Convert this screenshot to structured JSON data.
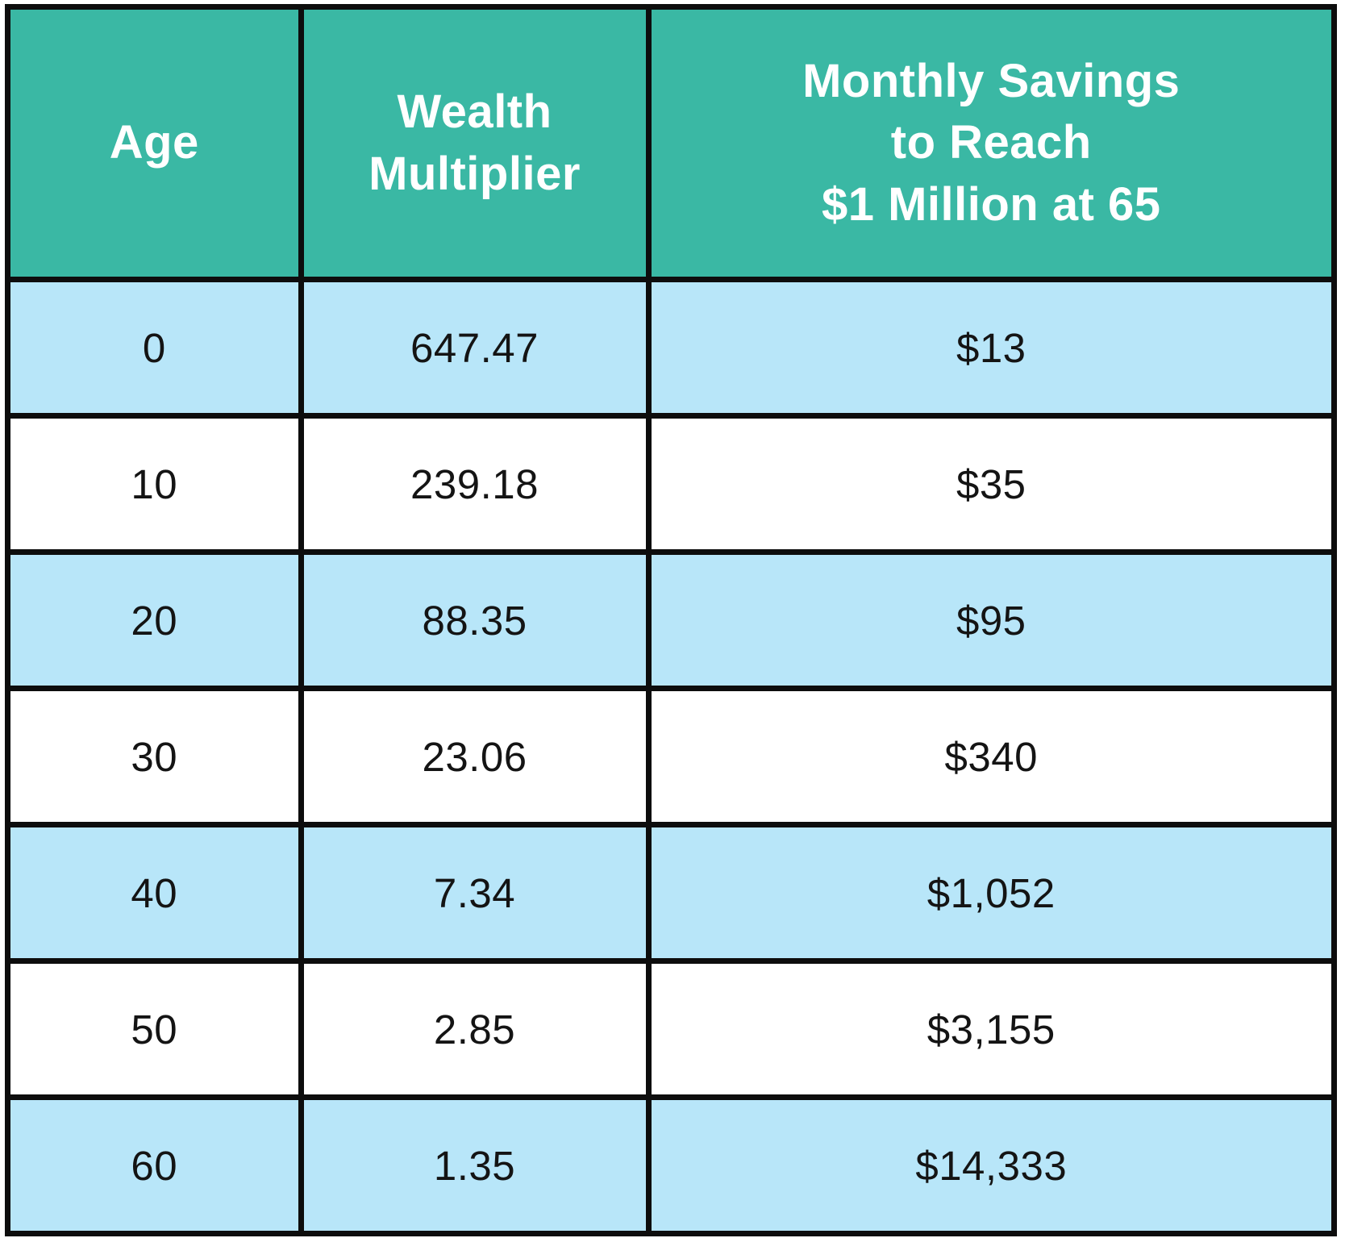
{
  "table": {
    "columns": [
      {
        "label": "Age"
      },
      {
        "label": "Wealth\nMultiplier"
      },
      {
        "label": "Monthly Savings\nto Reach\n$1 Million at 65"
      }
    ],
    "rows": [
      {
        "age": "0",
        "multiplier": "647.47",
        "savings": "$13"
      },
      {
        "age": "10",
        "multiplier": "239.18",
        "savings": "$35"
      },
      {
        "age": "20",
        "multiplier": "88.35",
        "savings": "$95"
      },
      {
        "age": "30",
        "multiplier": "23.06",
        "savings": "$340"
      },
      {
        "age": "40",
        "multiplier": "7.34",
        "savings": "$1,052"
      },
      {
        "age": "50",
        "multiplier": "2.85",
        "savings": "$3,155"
      },
      {
        "age": "60",
        "multiplier": "1.35",
        "savings": "$14,333"
      }
    ]
  },
  "colors": {
    "header_background": "#3ab8a4",
    "header_text": "#ffffff",
    "stripe_row_background": "#b8e6f9",
    "plain_row_background": "#ffffff",
    "border": "#0d0d0d",
    "cell_text": "#141414"
  },
  "chart_data": {
    "type": "table",
    "title": "Wealth Multiplier and Monthly Savings to Reach $1 Million at 65 by Age",
    "columns": [
      "Age",
      "Wealth Multiplier",
      "Monthly Savings to Reach $1 Million at 65"
    ],
    "rows": [
      [
        0,
        647.47,
        13
      ],
      [
        10,
        239.18,
        35
      ],
      [
        20,
        88.35,
        95
      ],
      [
        30,
        23.06,
        340
      ],
      [
        40,
        7.34,
        1052
      ],
      [
        50,
        2.85,
        3155
      ],
      [
        60,
        1.35,
        14333
      ]
    ],
    "savings_units": "USD per month",
    "layout": "header row teal, body rows alternate light-blue/white, thick black grid borders"
  }
}
